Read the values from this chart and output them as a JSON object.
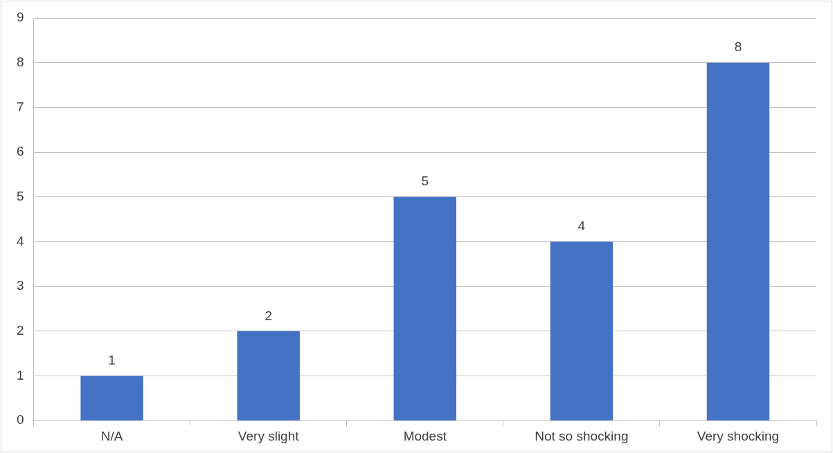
{
  "chart_data": {
    "type": "bar",
    "categories": [
      "N/A",
      "Very slight",
      "Modest",
      "Not so shocking",
      "Very shocking"
    ],
    "values": [
      1,
      2,
      5,
      4,
      8
    ],
    "color": "#4472c4",
    "ylim": [
      0,
      9
    ],
    "yticks": [
      0,
      1,
      2,
      3,
      4,
      5,
      6,
      7,
      8,
      9
    ],
    "grid": "y",
    "data_labels": true,
    "legend": false
  }
}
